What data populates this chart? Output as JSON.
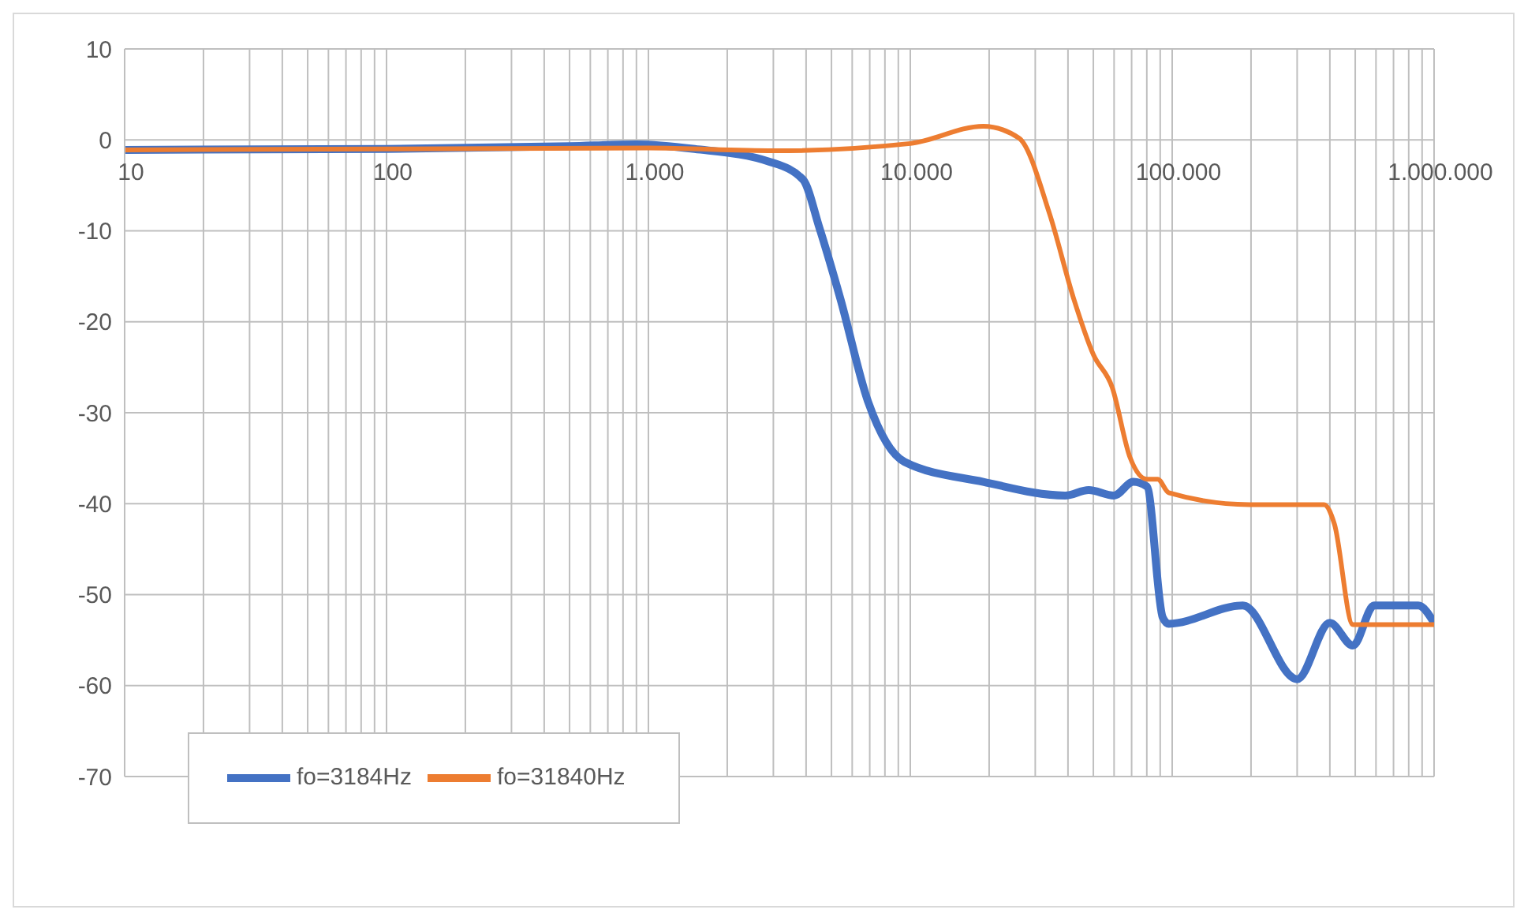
{
  "chart_data": {
    "type": "line",
    "log": "x",
    "grid": true,
    "legend": "bottom left",
    "line_style": "solid",
    "marker": "none",
    "xlim": [
      10,
      1000000
    ],
    "ylim": [
      -70,
      10
    ],
    "xticks": [
      10,
      {
        "value": 20,
        "label": null
      },
      {
        "value": 30,
        "label": null
      },
      {
        "value": 40,
        "label": null
      },
      {
        "value": 50,
        "label": null
      },
      {
        "value": 60,
        "label": null
      },
      {
        "value": 70,
        "label": null
      },
      {
        "value": 80,
        "label": null
      },
      {
        "value": 90,
        "label": null
      },
      100,
      {
        "value": 200,
        "label": null
      },
      {
        "value": 300,
        "label": null
      },
      {
        "value": 400,
        "label": null
      },
      {
        "value": 500,
        "label": null
      },
      {
        "value": 600,
        "label": null
      },
      {
        "value": 700,
        "label": null
      },
      {
        "value": 800,
        "label": null
      },
      {
        "value": 900,
        "label": null
      },
      {
        "value": 1000,
        "label": "1.000"
      },
      {
        "value": 2000,
        "label": null
      },
      {
        "value": 3000,
        "label": null
      },
      {
        "value": 4000,
        "label": null
      },
      {
        "value": 5000,
        "label": null
      },
      {
        "value": 6000,
        "label": null
      },
      {
        "value": 7000,
        "label": null
      },
      {
        "value": 8000,
        "label": null
      },
      {
        "value": 9000,
        "label": null
      },
      {
        "value": 10000,
        "label": "10.000"
      },
      {
        "value": 20000,
        "label": null
      },
      {
        "value": 30000,
        "label": null
      },
      {
        "value": 40000,
        "label": null
      },
      {
        "value": 50000,
        "label": null
      },
      {
        "value": 60000,
        "label": null
      },
      {
        "value": 70000,
        "label": null
      },
      {
        "value": 80000,
        "label": null
      },
      {
        "value": 90000,
        "label": null
      },
      {
        "value": 100000,
        "label": "100.000"
      },
      {
        "value": 200000,
        "label": null
      },
      {
        "value": 300000,
        "label": null
      },
      {
        "value": 400000,
        "label": null
      },
      {
        "value": 500000,
        "label": null
      },
      {
        "value": 600000,
        "label": null
      },
      {
        "value": 700000,
        "label": null
      },
      {
        "value": 800000,
        "label": null
      },
      {
        "value": 900000,
        "label": null
      },
      {
        "value": 1000000,
        "label": "1.000.000"
      }
    ],
    "yticks": [
      -70,
      -60,
      -50,
      -40,
      -30,
      -20,
      -10,
      0,
      10
    ],
    "series": [
      {
        "name": "fo=3184Hz",
        "color": "#4472c4",
        "x": [
          10,
          100,
          500,
          900,
          1500,
          2900,
          3900,
          4500,
          5400,
          6900,
          9500,
          19000,
          39000,
          48000,
          60000,
          71000,
          80000,
          92000,
          97000,
          186000,
          300000,
          400000,
          490000,
          590000,
          870000,
          1000000
        ],
        "values": [
          -1.1,
          -1.0,
          -0.7,
          -0.5,
          -1.0,
          -2.4,
          -4.4,
          -9.7,
          -17.4,
          -28.8,
          -35.4,
          -37.6,
          -39.1,
          -38.5,
          -39.1,
          -37.6,
          -38.1,
          -52.5,
          -53.2,
          -51.2,
          -59.3,
          -53.1,
          -55.6,
          -51.2,
          -51.2,
          -53.1
        ]
      },
      {
        "name": "fo=31840Hz",
        "color": "#ed7d31",
        "x": [
          10,
          100,
          1000,
          3000,
          10000,
          19000,
          26000,
          34000,
          42000,
          50000,
          59000,
          69000,
          80000,
          88000,
          97000,
          197000,
          380000,
          416000,
          490000,
          1000000
        ],
        "values": [
          -1.1,
          -1.0,
          -0.9,
          -1.2,
          -0.4,
          1.5,
          0.2,
          -8.1,
          -17.4,
          -23.6,
          -27.2,
          -34.9,
          -37.3,
          -37.3,
          -38.8,
          -40.1,
          -40.1,
          -42.2,
          -53.3,
          -53.3
        ]
      }
    ]
  }
}
